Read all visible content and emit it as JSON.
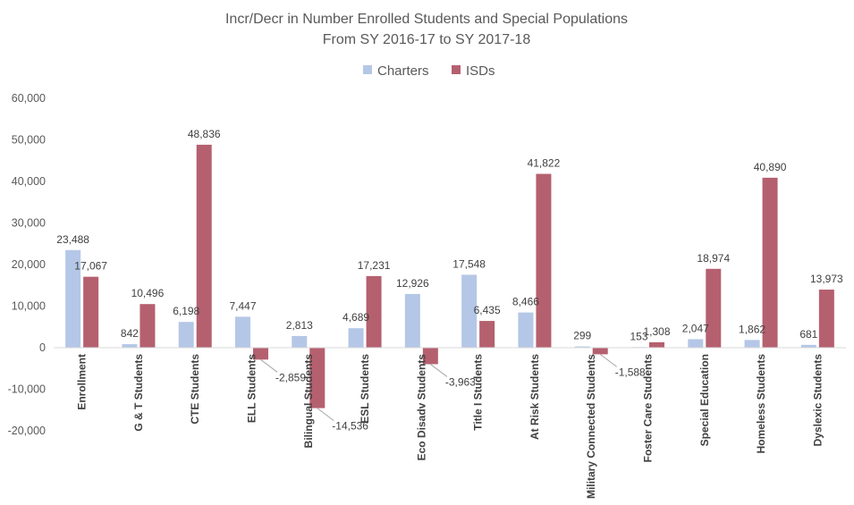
{
  "chart_data": {
    "type": "bar",
    "title": "Incr/Decr in Number Enrolled Students and Special Populations",
    "subtitle": "From SY 2016-17 to SY 2017-18",
    "xlabel": "",
    "ylabel": "",
    "ylim": [
      -20000,
      60000
    ],
    "yticks": [
      -20000,
      -10000,
      0,
      10000,
      20000,
      30000,
      40000,
      50000,
      60000
    ],
    "ytick_labels": [
      "-20,000",
      "-10,000",
      "0",
      "10,000",
      "20,000",
      "30,000",
      "40,000",
      "50,000",
      "60,000"
    ],
    "grid": false,
    "legend_position": "top",
    "categories": [
      "Enrollment",
      "G & T Students",
      "CTE Students",
      "ELL Students",
      "Bilingual Students",
      "ESL Students",
      "Eco Disadv Students",
      "Title I Students",
      "At Risk Students",
      "Military Connected Students",
      "Foster Care Students",
      "Special Education",
      "Homeless Students",
      "Dyslexic Students"
    ],
    "series": [
      {
        "name": "Charters",
        "color": "#b4c7e7",
        "values": [
          23488,
          842,
          6198,
          7447,
          2813,
          4689,
          12926,
          17548,
          8466,
          299,
          153,
          2047,
          1862,
          681
        ],
        "labels": [
          "23,488",
          "842",
          "6,198",
          "7,447",
          "2,813",
          "4,689",
          "12,926",
          "17,548",
          "8,466",
          "299",
          "153",
          "2,047",
          "1,862",
          "681"
        ]
      },
      {
        "name": "ISDs",
        "color": "#b5606f",
        "values": [
          17067,
          10496,
          48836,
          -2859,
          -14536,
          17231,
          -3963,
          6435,
          41822,
          -1588,
          1308,
          18974,
          40890,
          13973
        ],
        "labels": [
          "17,067",
          "10,496",
          "48,836",
          "-2,859",
          "-14,536",
          "17,231",
          "-3,963",
          "6,435",
          "41,822",
          "-1,588",
          "1,308",
          "18,974",
          "40,890",
          "13,973"
        ]
      }
    ]
  }
}
